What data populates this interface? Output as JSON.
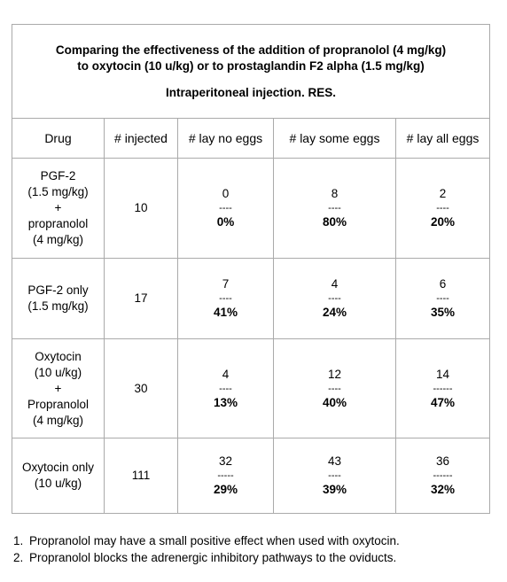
{
  "table": {
    "title": [
      "Comparing the effectiveness of  the addition of propranolol (4 mg/kg)",
      "to oxytocin (10 u/kg) or to prostaglandin F2 alpha (1.5 mg/kg)"
    ],
    "subtitle": "Intraperitoneal injection.  RES.",
    "headers": [
      "Drug",
      "# injected",
      "# lay no eggs",
      "# lay some eggs",
      "# lay all eggs"
    ],
    "rows": [
      {
        "drug": [
          "PGF-2",
          "(1.5 mg/kg)",
          "+",
          "propranolol",
          "(4 mg/kg)"
        ],
        "injected": 10,
        "cells": [
          {
            "count": 0,
            "dashes": "----",
            "percent": "0%"
          },
          {
            "count": 8,
            "dashes": "----",
            "percent": "80%"
          },
          {
            "count": 2,
            "dashes": "----",
            "percent": "20%"
          }
        ]
      },
      {
        "drug": [
          "PGF-2 only",
          "(1.5 mg/kg)"
        ],
        "injected": 17,
        "cells": [
          {
            "count": 7,
            "dashes": "----",
            "percent": "41%"
          },
          {
            "count": 4,
            "dashes": "----",
            "percent": "24%"
          },
          {
            "count": 6,
            "dashes": "----",
            "percent": "35%"
          }
        ]
      },
      {
        "drug": [
          "Oxytocin",
          "(10 u/kg)",
          "+",
          "Propranolol",
          "(4 mg/kg)"
        ],
        "injected": 30,
        "cells": [
          {
            "count": 4,
            "dashes": "----",
            "percent": "13%"
          },
          {
            "count": 12,
            "dashes": "----",
            "percent": "40%"
          },
          {
            "count": 14,
            "dashes": "------",
            "percent": "47%"
          }
        ]
      },
      {
        "drug": [
          "Oxytocin only",
          "(10 u/kg)"
        ],
        "injected": 111,
        "cells": [
          {
            "count": 32,
            "dashes": "-----",
            "percent": "29%"
          },
          {
            "count": 43,
            "dashes": "----",
            "percent": "39%"
          },
          {
            "count": 36,
            "dashes": "------",
            "percent": "32%"
          }
        ]
      }
    ]
  },
  "notes": [
    {
      "number": "1.",
      "text": "Propranolol may have a small positive effect when used with oxytocin."
    },
    {
      "number": "2.",
      "text": "Propranolol blocks the adrenergic inhibitory pathways to the oviducts."
    }
  ]
}
